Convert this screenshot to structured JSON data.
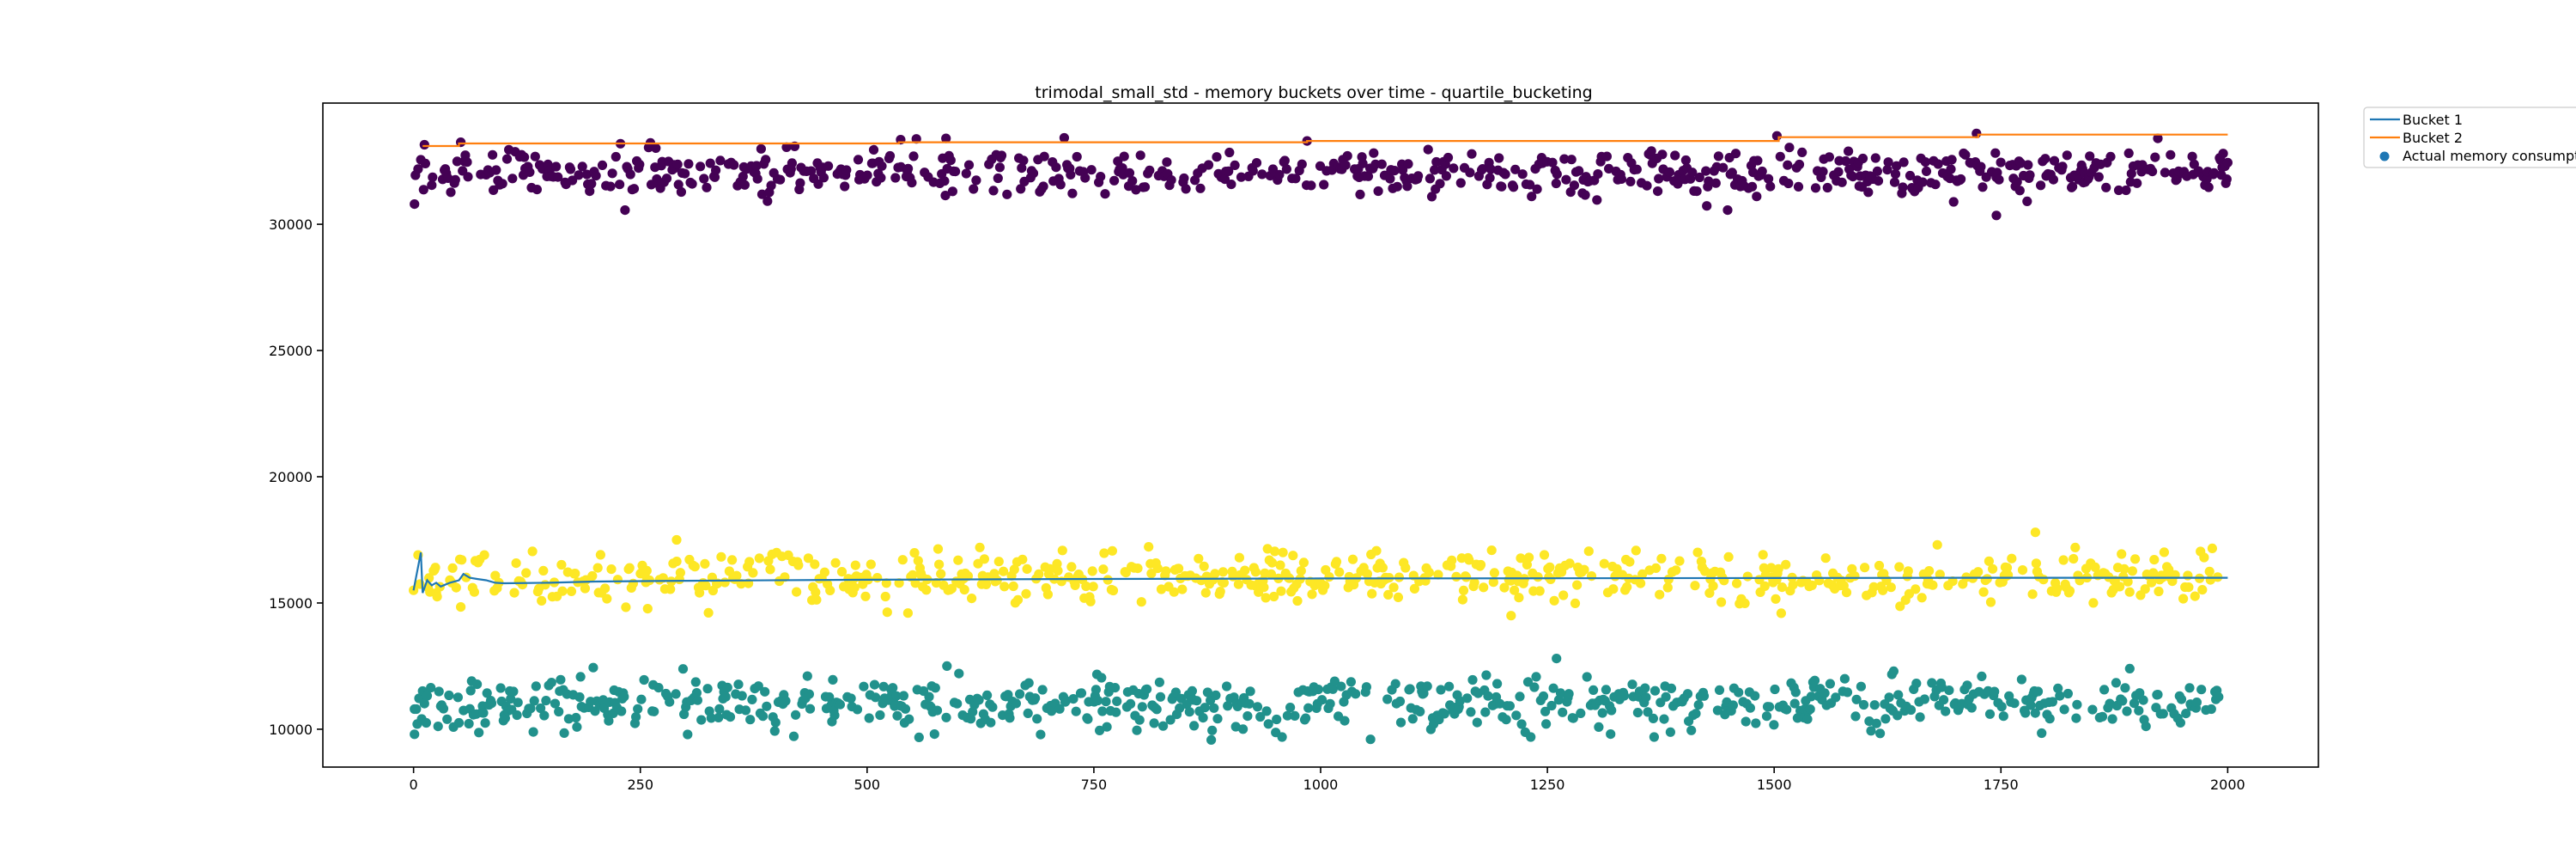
{
  "chart_data": {
    "type": "scatter",
    "title": "trimodal_small_std - memory buckets over time - quartile_bucketing",
    "xlabel": "",
    "ylabel": "",
    "xlim": [
      -100,
      2100
    ],
    "ylim": [
      8500,
      34800
    ],
    "x_ticks": [
      0,
      250,
      500,
      750,
      1000,
      1250,
      1500,
      1750,
      2000
    ],
    "y_ticks": [
      10000,
      15000,
      20000,
      25000,
      30000
    ],
    "legend_position": "outside-top-right",
    "grid": false,
    "colors": {
      "bucket_1": "#1f77b4",
      "bucket_2": "#ff7f0e",
      "scatter_low": "#21918c",
      "scatter_mid": "#fde725",
      "scatter_high": "#440154"
    },
    "series": [
      {
        "name": "Bucket 1",
        "kind": "line",
        "points": [
          [
            0,
            15500
          ],
          [
            8,
            17000
          ],
          [
            10,
            15400
          ],
          [
            15,
            15900
          ],
          [
            20,
            15700
          ],
          [
            25,
            15800
          ],
          [
            30,
            15650
          ],
          [
            40,
            15800
          ],
          [
            50,
            15900
          ],
          [
            55,
            16150
          ],
          [
            62,
            16000
          ],
          [
            70,
            15950
          ],
          [
            80,
            15900
          ],
          [
            90,
            15800
          ],
          [
            100,
            15780
          ],
          [
            150,
            15800
          ],
          [
            200,
            15850
          ],
          [
            300,
            15880
          ],
          [
            500,
            15920
          ],
          [
            750,
            15950
          ],
          [
            1000,
            15970
          ],
          [
            1250,
            15980
          ],
          [
            1500,
            15990
          ],
          [
            1750,
            16000
          ],
          [
            2000,
            16000
          ]
        ]
      },
      {
        "name": "Bucket 2",
        "kind": "step",
        "points": [
          [
            10,
            33100
          ],
          [
            50,
            33200
          ],
          [
            535,
            33250
          ],
          [
            985,
            33300
          ],
          [
            1505,
            33450
          ],
          [
            1725,
            33550
          ],
          [
            2000,
            33550
          ]
        ]
      },
      {
        "name": "Actual memory consumption",
        "kind": "scatter",
        "clusters": [
          {
            "group": "high",
            "center": 32000,
            "spread": 450
          },
          {
            "group": "mid",
            "center": 16000,
            "spread": 480
          },
          {
            "group": "low",
            "center": 11000,
            "spread": 500
          }
        ],
        "x_range": [
          0,
          2000
        ],
        "n_points": 2000,
        "outliers": [
          {
            "group": "high",
            "x": 1,
            "y": 30800
          },
          {
            "group": "high",
            "x": 12,
            "y": 33150
          },
          {
            "group": "high",
            "x": 52,
            "y": 33250
          },
          {
            "group": "high",
            "x": 537,
            "y": 33350
          },
          {
            "group": "high",
            "x": 587,
            "y": 33400
          },
          {
            "group": "high",
            "x": 985,
            "y": 33300
          },
          {
            "group": "high",
            "x": 1503,
            "y": 33500
          },
          {
            "group": "high",
            "x": 1723,
            "y": 33600
          },
          {
            "group": "high",
            "x": 1923,
            "y": 33400
          },
          {
            "group": "high",
            "x": 1745,
            "y": 30350
          },
          {
            "group": "mid",
            "x": 5,
            "y": 16900
          },
          {
            "group": "mid",
            "x": 290,
            "y": 17500
          },
          {
            "group": "mid",
            "x": 1788,
            "y": 17800
          },
          {
            "group": "mid",
            "x": 1210,
            "y": 14500
          },
          {
            "group": "mid",
            "x": 545,
            "y": 14600
          },
          {
            "group": "low",
            "x": 1,
            "y": 9800
          },
          {
            "group": "low",
            "x": 588,
            "y": 12500
          },
          {
            "group": "low",
            "x": 1260,
            "y": 12800
          },
          {
            "group": "low",
            "x": 1892,
            "y": 12400
          },
          {
            "group": "low",
            "x": 1055,
            "y": 9600
          }
        ]
      }
    ]
  }
}
